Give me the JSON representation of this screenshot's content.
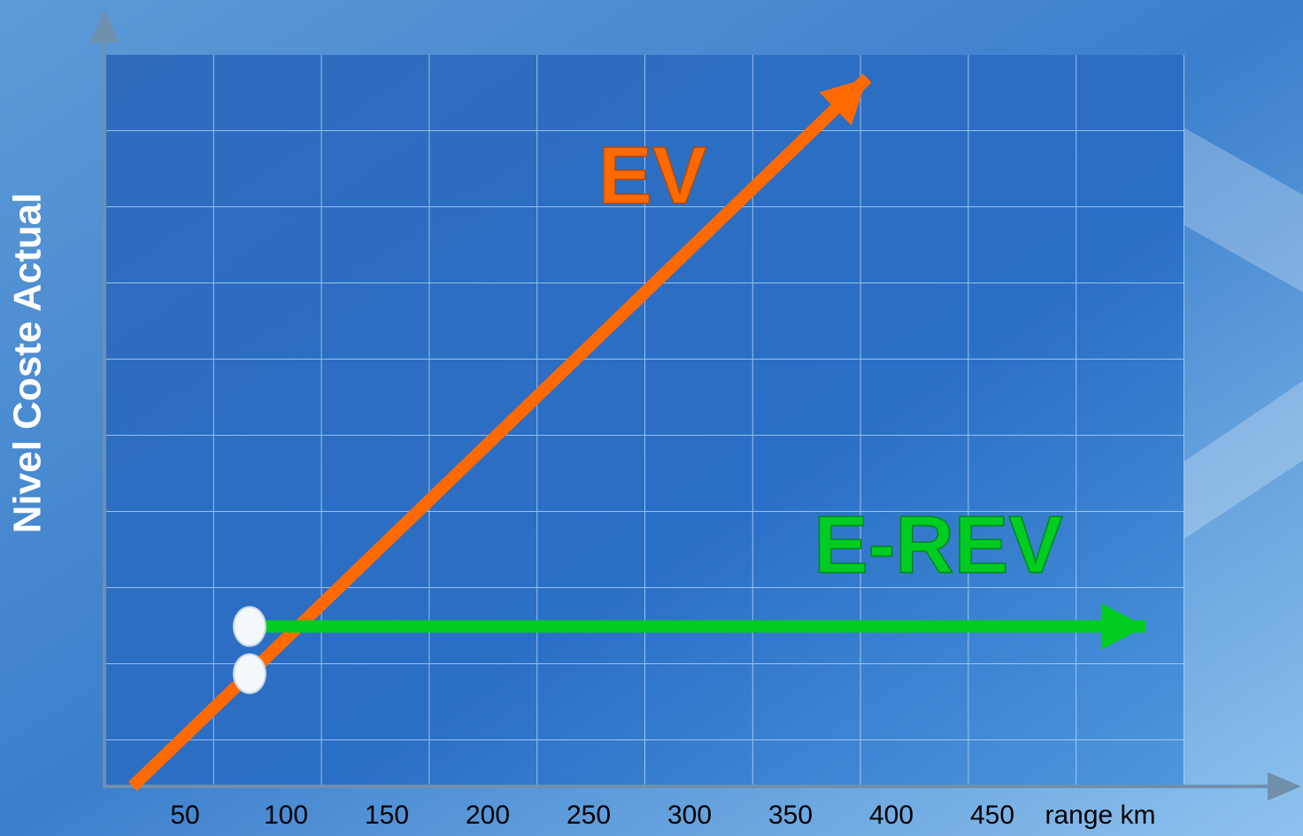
{
  "chart_data": {
    "type": "line",
    "xlabel": "range km",
    "ylabel": "Nivel Coste Actual",
    "xlim": [
      0,
      600
    ],
    "xticks": [
      50,
      100,
      150,
      200,
      250,
      300,
      350,
      400,
      450
    ],
    "ylim": [
      0,
      10
    ],
    "series": [
      {
        "name": "EV",
        "color": "#ff6a00",
        "x": [
          24,
          82,
          388
        ],
        "values": [
          0,
          1.48,
          9.3
        ]
      },
      {
        "name": "E-REV",
        "color": "#00cc22",
        "x": [
          82,
          526
        ],
        "values": [
          2.1,
          2.1
        ]
      }
    ]
  }
}
